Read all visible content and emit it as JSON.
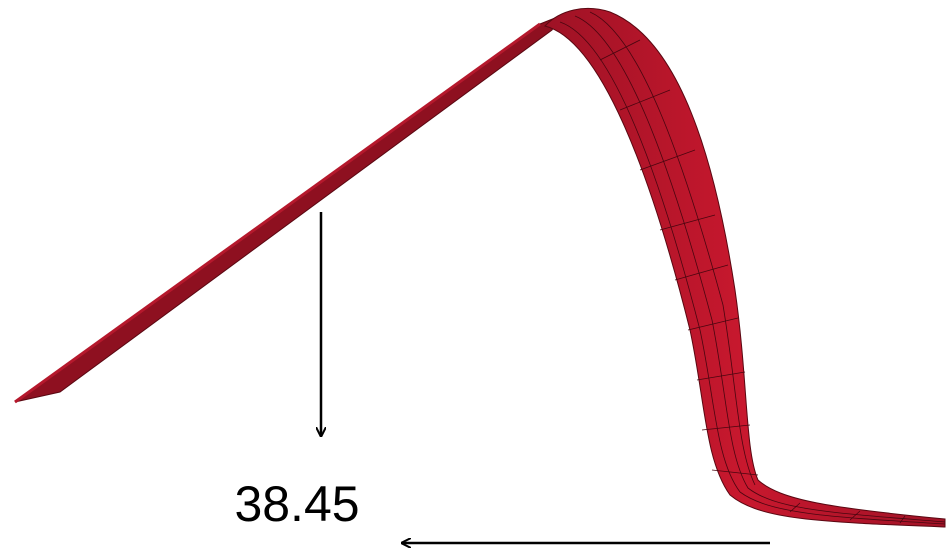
{
  "annotation": {
    "value": "38.45"
  }
}
